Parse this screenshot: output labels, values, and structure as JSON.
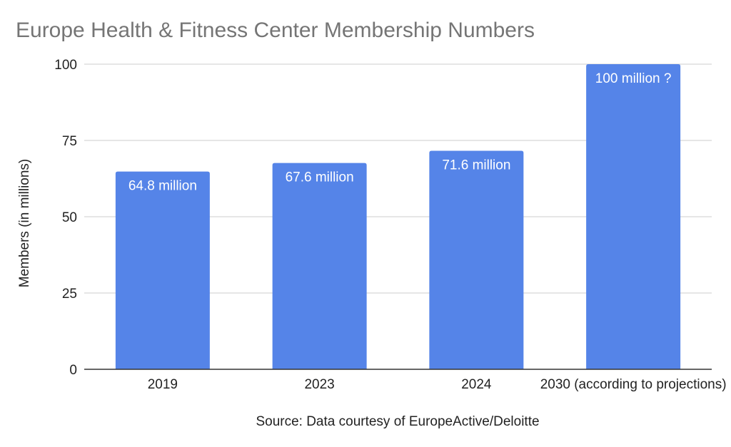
{
  "chart_data": {
    "type": "bar",
    "title": "Europe Health & Fitness Center Membership Numbers",
    "xlabel": "",
    "ylabel": "Members (in millions)",
    "ylim": [
      0,
      100
    ],
    "yticks": [
      "0",
      "25",
      "50",
      "75",
      "100"
    ],
    "categories": [
      "2019",
      "2023",
      "2024",
      "2030 (according to projections)"
    ],
    "values": [
      64.8,
      67.6,
      71.6,
      100
    ],
    "data_labels": [
      "64.8 million",
      "67.6 million",
      "71.6 million",
      "100 million ?"
    ],
    "bar_color": "#5584e8",
    "grid": true,
    "legend": "none",
    "source": "Source: Data courtesy of EuropeActive/Deloitte"
  }
}
